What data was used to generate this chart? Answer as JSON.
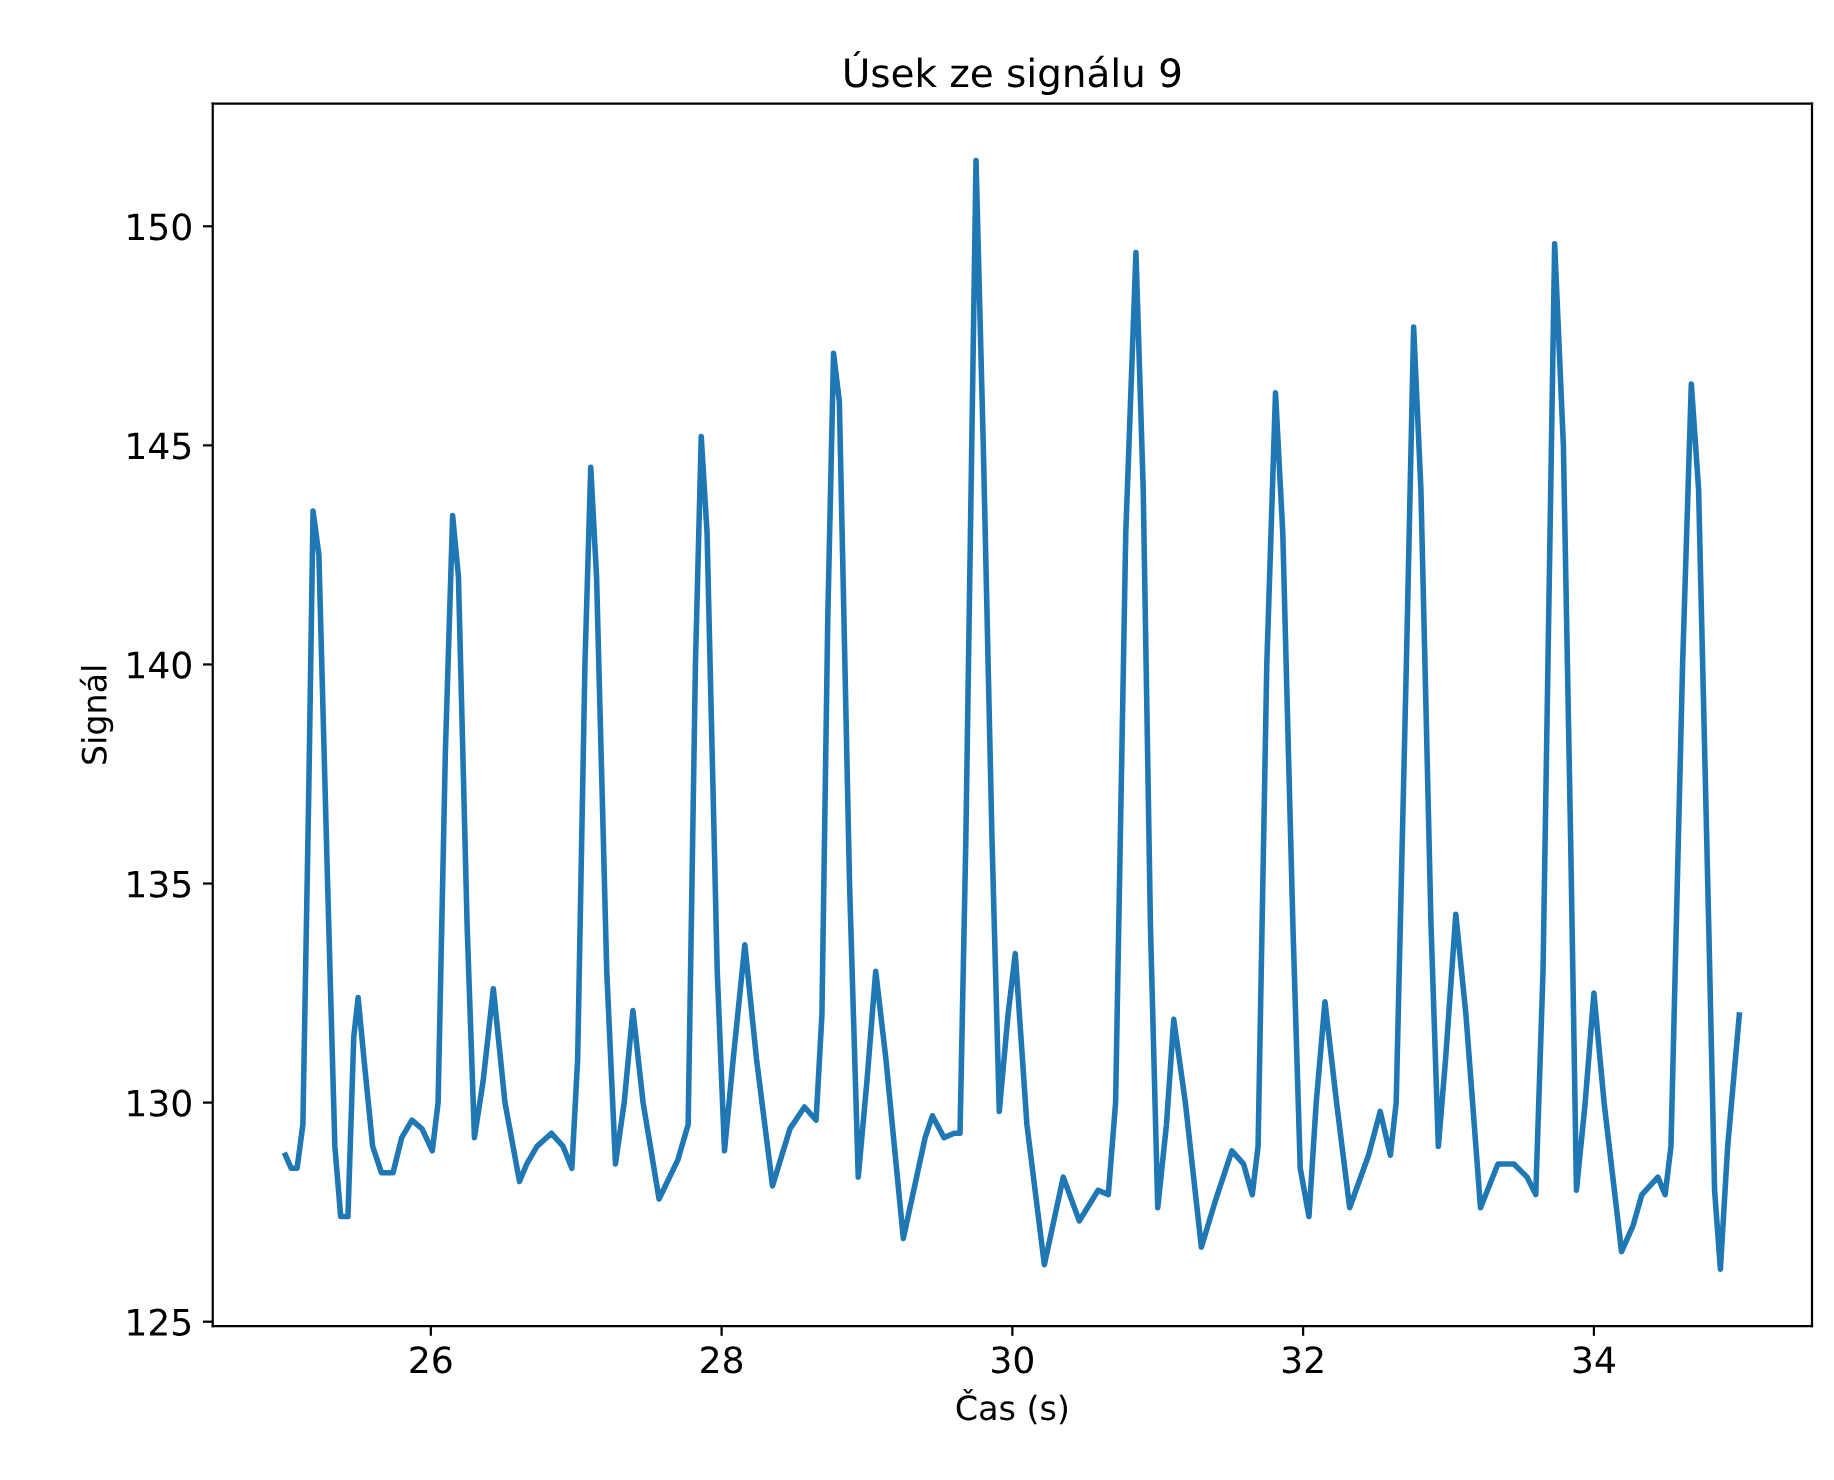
{
  "chart_data": {
    "type": "line",
    "title": "Úsek ze signálu 9",
    "xlabel": "Čas (s)",
    "ylabel": "Signál",
    "xlim": [
      24.5,
      35.5
    ],
    "ylim": [
      124.9,
      152.8
    ],
    "xticks": [
      26,
      28,
      30,
      32,
      34
    ],
    "yticks": [
      125,
      130,
      135,
      140,
      145,
      150
    ],
    "grid": false,
    "legend": false,
    "series": [
      {
        "color": "#1f77b4",
        "x": [
          25.0,
          25.04,
          25.08,
          25.12,
          25.16,
          25.19,
          25.23,
          25.29,
          25.34,
          25.38,
          25.43,
          25.47,
          25.5,
          25.54,
          25.6,
          25.66,
          25.74,
          25.8,
          25.87,
          25.94,
          26.01,
          26.05,
          26.1,
          26.15,
          26.19,
          26.25,
          26.3,
          26.36,
          26.43,
          26.51,
          26.61,
          26.66,
          26.73,
          26.83,
          26.91,
          26.97,
          27.01,
          27.06,
          27.1,
          27.14,
          27.21,
          27.27,
          27.33,
          27.39,
          27.46,
          27.57,
          27.7,
          27.77,
          27.82,
          27.86,
          27.9,
          27.97,
          28.02,
          28.08,
          28.16,
          28.24,
          28.35,
          28.47,
          28.57,
          28.65,
          28.69,
          28.73,
          28.77,
          28.81,
          28.88,
          28.94,
          29.0,
          29.06,
          29.13,
          29.25,
          29.4,
          29.45,
          29.53,
          29.6,
          29.64,
          29.68,
          29.75,
          29.8,
          29.86,
          29.91,
          29.97,
          30.02,
          30.1,
          30.22,
          30.35,
          30.46,
          30.59,
          30.66,
          30.71,
          30.78,
          30.85,
          30.9,
          30.95,
          31.0,
          31.06,
          31.11,
          31.19,
          31.3,
          31.4,
          31.51,
          31.59,
          31.65,
          31.69,
          31.75,
          31.81,
          31.86,
          31.93,
          31.98,
          32.04,
          32.09,
          32.15,
          32.23,
          32.32,
          32.45,
          32.53,
          32.6,
          32.64,
          32.71,
          32.76,
          32.81,
          32.88,
          32.93,
          32.98,
          33.05,
          33.12,
          33.22,
          33.34,
          33.45,
          33.54,
          33.6,
          33.65,
          33.73,
          33.79,
          33.84,
          33.88,
          33.94,
          34.0,
          34.07,
          34.19,
          34.27,
          34.33,
          34.44,
          34.49,
          34.53,
          34.61,
          34.67,
          34.72,
          34.79,
          34.83,
          34.87,
          34.92,
          35.0
        ],
        "values": [
          128.8,
          128.5,
          128.5,
          129.5,
          137,
          143.5,
          142.5,
          135,
          129,
          127.4,
          127.4,
          131.5,
          132.4,
          131,
          129,
          128.4,
          128.4,
          129.2,
          129.6,
          129.4,
          128.9,
          130,
          138,
          143.4,
          142,
          134,
          129.2,
          130.5,
          132.6,
          130,
          128.2,
          128.6,
          129.0,
          129.3,
          129.0,
          128.5,
          131,
          140,
          144.5,
          142,
          133,
          128.6,
          130,
          132.1,
          130,
          127.8,
          128.7,
          129.5,
          140,
          145.2,
          143,
          133,
          128.9,
          131,
          133.6,
          131,
          128.1,
          129.4,
          129.9,
          129.6,
          132,
          141,
          147.1,
          146,
          135,
          128.3,
          130.5,
          133.0,
          131,
          126.9,
          129.2,
          129.7,
          129.2,
          129.3,
          129.3,
          136,
          151.5,
          145,
          136,
          129.8,
          132,
          133.4,
          129.5,
          126.3,
          128.3,
          127.3,
          128.0,
          127.9,
          130,
          143,
          149.4,
          144,
          134,
          127.6,
          129.5,
          131.9,
          130,
          126.7,
          127.8,
          128.9,
          128.6,
          127.9,
          129,
          140,
          146.2,
          143,
          134,
          128.5,
          127.4,
          130,
          132.3,
          130,
          127.6,
          128.8,
          129.8,
          128.8,
          130,
          140,
          147.7,
          144,
          134,
          129.0,
          131,
          134.3,
          132,
          127.6,
          128.6,
          128.6,
          128.3,
          127.9,
          133,
          149.6,
          145,
          136,
          128.0,
          130,
          132.5,
          130,
          126.6,
          127.2,
          127.9,
          128.3,
          127.9,
          129,
          140,
          146.4,
          144,
          134,
          128,
          126.2,
          129,
          132.0
        ]
      }
    ]
  }
}
